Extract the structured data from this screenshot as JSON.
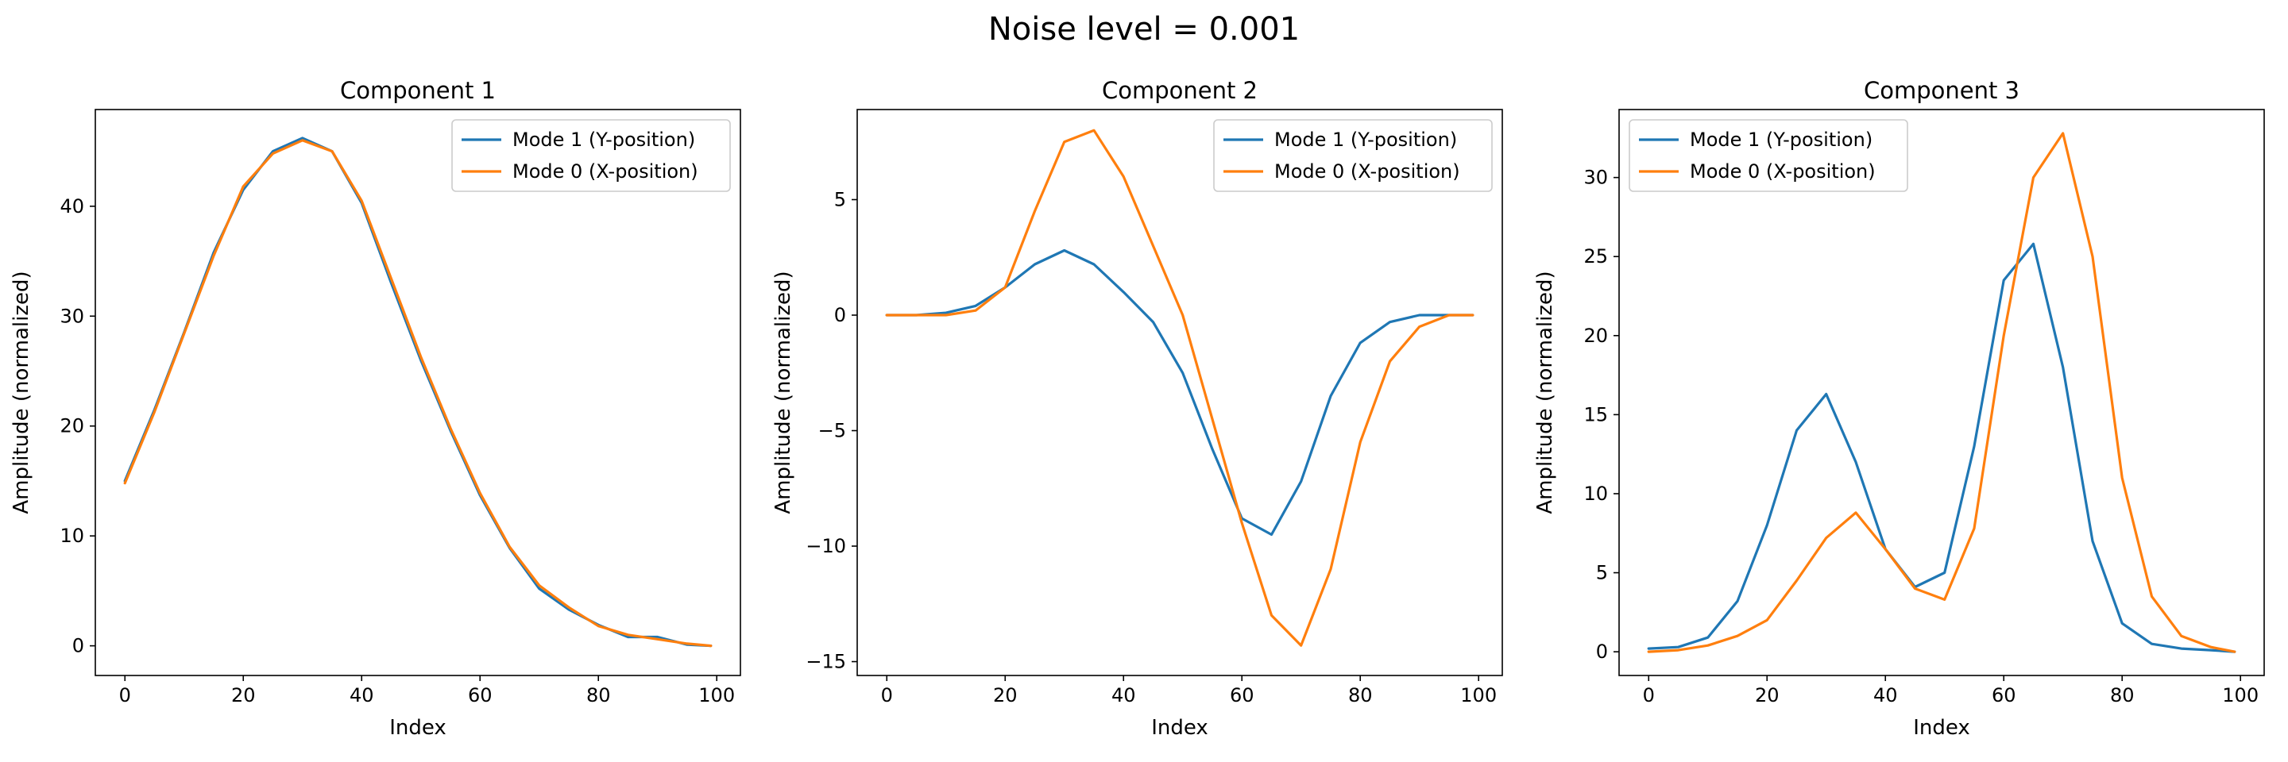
{
  "figure": {
    "title": "Noise level = 0.001"
  },
  "chart_data": [
    {
      "type": "line",
      "title": "Component 1",
      "xlabel": "Index",
      "ylabel": "Amplitude (normalized)",
      "xlim": [
        -5,
        104
      ],
      "ylim": [
        -2.7,
        48.8
      ],
      "xticks": [
        0,
        20,
        40,
        60,
        80,
        100
      ],
      "yticks": [
        0,
        10,
        20,
        30,
        40
      ],
      "legend": "upper right",
      "grid": false,
      "x": [
        0,
        5,
        10,
        15,
        20,
        25,
        30,
        35,
        40,
        45,
        50,
        55,
        60,
        65,
        70,
        75,
        80,
        85,
        90,
        95,
        99
      ],
      "series": [
        {
          "name": "Mode 1 (Y-position)",
          "color": "#1f77b4",
          "values": [
            15,
            21.5,
            28.5,
            35.8,
            41.5,
            45,
            46.2,
            45,
            40.3,
            33,
            26,
            19.6,
            13.7,
            8.9,
            5.2,
            3.3,
            1.9,
            0.8,
            0.8,
            0.1,
            0
          ]
        },
        {
          "name": "Mode 0 (X-position)",
          "color": "#ff7f0e",
          "values": [
            14.8,
            21.3,
            28.4,
            35.5,
            41.8,
            44.8,
            46,
            45,
            40.5,
            33.4,
            26.3,
            19.8,
            13.9,
            9,
            5.5,
            3.5,
            1.8,
            1,
            0.6,
            0.2,
            0
          ]
        }
      ]
    },
    {
      "type": "line",
      "title": "Component 2",
      "xlabel": "Index",
      "ylabel": "Amplitude (normalized)",
      "xlim": [
        -5,
        104
      ],
      "ylim": [
        -15.6,
        8.9
      ],
      "xticks": [
        0,
        20,
        40,
        60,
        80,
        100
      ],
      "yticks": [
        -15,
        -10,
        -5,
        0,
        5
      ],
      "legend": "upper right",
      "grid": false,
      "x": [
        0,
        5,
        10,
        15,
        20,
        25,
        30,
        35,
        40,
        45,
        50,
        55,
        60,
        65,
        70,
        75,
        80,
        85,
        90,
        95,
        99
      ],
      "series": [
        {
          "name": "Mode 1 (Y-position)",
          "color": "#1f77b4",
          "values": [
            0,
            0,
            0.1,
            0.4,
            1.2,
            2.2,
            2.8,
            2.2,
            1,
            -0.3,
            -2.5,
            -5.8,
            -8.8,
            -9.5,
            -7.2,
            -3.5,
            -1.2,
            -0.3,
            0,
            0,
            0
          ]
        },
        {
          "name": "Mode 0 (X-position)",
          "color": "#ff7f0e",
          "values": [
            0,
            0,
            0,
            0.2,
            1.2,
            4.5,
            7.5,
            8,
            6,
            3,
            0,
            -4.5,
            -9,
            -13,
            -14.3,
            -11,
            -5.5,
            -2,
            -0.5,
            0,
            0
          ]
        }
      ]
    },
    {
      "type": "line",
      "title": "Component 3",
      "xlabel": "Index",
      "ylabel": "Amplitude (normalized)",
      "xlim": [
        -5,
        104
      ],
      "ylim": [
        -1.5,
        34.3
      ],
      "xticks": [
        0,
        20,
        40,
        60,
        80,
        100
      ],
      "yticks": [
        0,
        5,
        10,
        15,
        20,
        25,
        30
      ],
      "legend": "upper left",
      "grid": false,
      "x": [
        0,
        5,
        10,
        15,
        20,
        25,
        30,
        35,
        40,
        45,
        50,
        55,
        60,
        65,
        70,
        75,
        80,
        85,
        90,
        95,
        99
      ],
      "series": [
        {
          "name": "Mode 1 (Y-position)",
          "color": "#1f77b4",
          "values": [
            0.2,
            0.3,
            0.9,
            3.2,
            8,
            14,
            16.3,
            12,
            6.5,
            4.1,
            5,
            13,
            23.5,
            25.8,
            18,
            7,
            1.8,
            0.5,
            0.2,
            0.1,
            0
          ]
        },
        {
          "name": "Mode 0 (X-position)",
          "color": "#ff7f0e",
          "values": [
            0,
            0.1,
            0.4,
            1,
            2,
            4.5,
            7.2,
            8.8,
            6.5,
            4,
            3.3,
            7.8,
            20,
            30,
            32.8,
            25,
            11,
            3.5,
            1,
            0.3,
            0
          ]
        }
      ]
    }
  ]
}
